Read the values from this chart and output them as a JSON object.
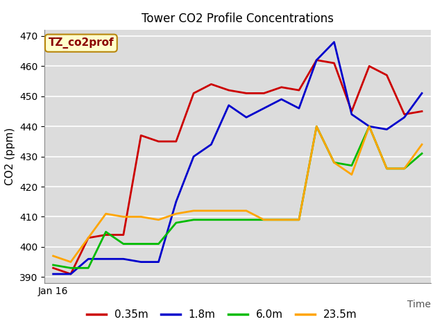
{
  "title": "Tower CO2 Profile Concentrations",
  "xlabel": "Time",
  "ylabel": "CO2 (ppm)",
  "ylim": [
    388,
    472
  ],
  "yticks": [
    390,
    400,
    410,
    420,
    430,
    440,
    450,
    460,
    470
  ],
  "annotation": "TZ_co2prof",
  "x_label_start": "Jan 16",
  "plot_bg_color": "#dcdcdc",
  "fig_bg_color": "#ffffff",
  "series": {
    "0.35m": {
      "color": "#cc0000",
      "values": [
        393,
        391,
        403,
        404,
        404,
        437,
        435,
        435,
        451,
        454,
        452,
        451,
        451,
        453,
        452,
        462,
        461,
        445,
        460,
        457,
        444,
        445
      ]
    },
    "1.8m": {
      "color": "#0000cc",
      "values": [
        391,
        391,
        396,
        396,
        396,
        395,
        395,
        415,
        430,
        434,
        447,
        443,
        446,
        449,
        446,
        462,
        468,
        444,
        440,
        439,
        443,
        451
      ]
    },
    "6.0m": {
      "color": "#00bb00",
      "values": [
        394,
        393,
        393,
        405,
        401,
        401,
        401,
        408,
        409,
        409,
        409,
        409,
        409,
        409,
        409,
        440,
        428,
        427,
        440,
        426,
        426,
        431
      ]
    },
    "23.5m": {
      "color": "#ffa500",
      "values": [
        397,
        395,
        403,
        411,
        410,
        410,
        409,
        411,
        412,
        412,
        412,
        412,
        409,
        409,
        409,
        440,
        428,
        424,
        440,
        426,
        426,
        434
      ]
    }
  },
  "legend_order": [
    "0.35m",
    "1.8m",
    "6.0m",
    "23.5m"
  ]
}
